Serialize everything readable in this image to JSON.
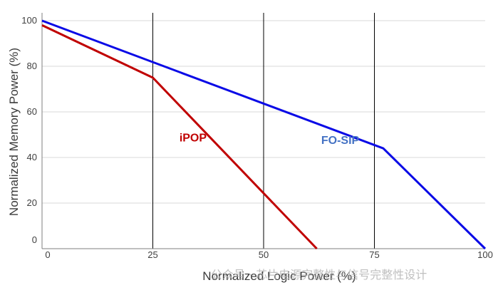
{
  "chart_data": {
    "type": "line",
    "title": "",
    "xlabel": "Normalized Logic Power (%)",
    "ylabel": "Normalized Memory Power (%)",
    "xlim": [
      0,
      100
    ],
    "ylim": [
      0,
      100
    ],
    "xticks": [
      0,
      25,
      50,
      75,
      100
    ],
    "yticks": [
      0,
      20,
      40,
      60,
      80,
      100
    ],
    "vertical_lines_at": [
      25,
      50,
      75
    ],
    "grid": "horizontal",
    "series": [
      {
        "name": "FO-SIP",
        "color": "#0a0ae6",
        "label_color": "#4472c4",
        "label_pos": [
          63,
          46
        ],
        "x": [
          0,
          77,
          100
        ],
        "y": [
          100,
          44,
          0
        ]
      },
      {
        "name": "iPOP",
        "color": "#c00000",
        "label_color": "#c00000",
        "label_pos": [
          31,
          47
        ],
        "x": [
          0,
          25,
          62
        ],
        "y": [
          98,
          75,
          0
        ]
      }
    ]
  },
  "watermark": "公众号 · 芯片电源完整性与信号完整性设计"
}
